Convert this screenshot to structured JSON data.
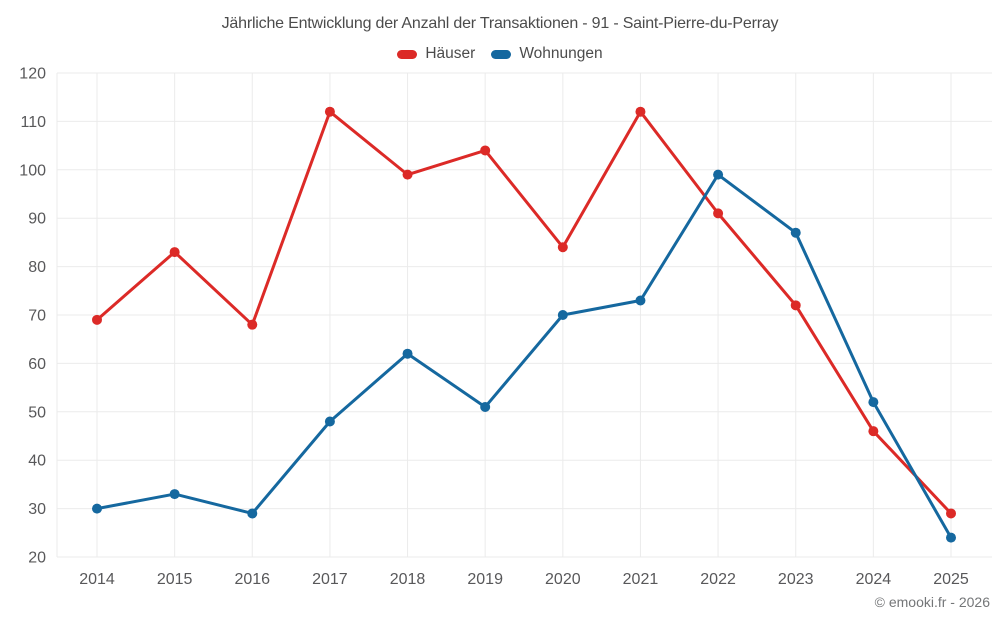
{
  "chart_data": {
    "type": "line",
    "title": "Jährliche Entwicklung der Anzahl der Transaktionen - 91 - Saint-Pierre-du-Perray",
    "categories": [
      "2014",
      "2015",
      "2016",
      "2017",
      "2018",
      "2019",
      "2020",
      "2021",
      "2022",
      "2023",
      "2024",
      "2025"
    ],
    "series": [
      {
        "name": "Häuser",
        "color": "#dc2a27",
        "values": [
          69,
          83,
          68,
          112,
          99,
          104,
          84,
          112,
          91,
          72,
          46,
          29
        ]
      },
      {
        "name": "Wohnungen",
        "color": "#15689f",
        "values": [
          30,
          33,
          29,
          48,
          62,
          51,
          70,
          73,
          99,
          87,
          52,
          24
        ]
      }
    ],
    "xlabel": "",
    "ylabel": "",
    "ylim": [
      20,
      120
    ],
    "y_ticks": [
      20,
      30,
      40,
      50,
      60,
      70,
      80,
      90,
      100,
      110,
      120
    ],
    "grid": true,
    "legend_position": "top",
    "footer": "© emooki.fr - 2026",
    "colors": {
      "grid": "#ebebeb",
      "axis_text": "#58585a",
      "title_text": "#4c4c4c",
      "footer_text": "#747678",
      "background": "#ffffff"
    }
  }
}
